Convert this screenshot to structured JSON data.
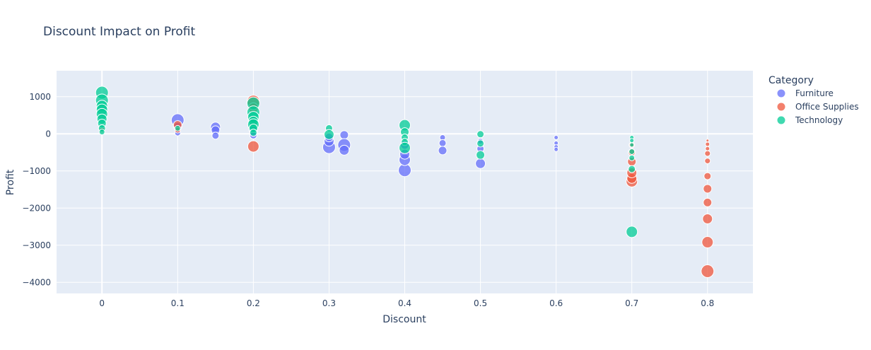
{
  "chart_data": {
    "type": "scatter",
    "title": "Discount Impact on Profit",
    "xlabel": "Discount",
    "ylabel": "Profit",
    "xlim": [
      -0.06,
      0.86
    ],
    "ylim": [
      -4300,
      1700
    ],
    "xticks": [
      0,
      0.1,
      0.2,
      0.3,
      0.4,
      0.5,
      0.6,
      0.7,
      0.8
    ],
    "xtick_labels": [
      "0",
      "0.1",
      "0.2",
      "0.3",
      "0.4",
      "0.5",
      "0.6",
      "0.7",
      "0.8"
    ],
    "yticks": [
      1000,
      0,
      -1000,
      -2000,
      -3000,
      -4000
    ],
    "ytick_labels": [
      "1000",
      "0",
      "−1000",
      "−2000",
      "−3000",
      "−4000"
    ],
    "grid": true,
    "legend_title": "Category",
    "legend_position": "top-right",
    "series": [
      {
        "name": "Furniture",
        "color": "#636efa",
        "points": [
          {
            "x": 0.1,
            "y": 370,
            "s": 9
          },
          {
            "x": 0.1,
            "y": 200,
            "s": 6
          },
          {
            "x": 0.1,
            "y": 20,
            "s": 4
          },
          {
            "x": 0.15,
            "y": 180,
            "s": 7
          },
          {
            "x": 0.15,
            "y": 100,
            "s": 6
          },
          {
            "x": 0.15,
            "y": -50,
            "s": 5
          },
          {
            "x": 0.2,
            "y": 100,
            "s": 6
          },
          {
            "x": 0.2,
            "y": -40,
            "s": 5
          },
          {
            "x": 0.3,
            "y": -360,
            "s": 9
          },
          {
            "x": 0.3,
            "y": -200,
            "s": 7
          },
          {
            "x": 0.3,
            "y": -100,
            "s": 6
          },
          {
            "x": 0.32,
            "y": -30,
            "s": 6
          },
          {
            "x": 0.32,
            "y": -300,
            "s": 9
          },
          {
            "x": 0.32,
            "y": -440,
            "s": 7
          },
          {
            "x": 0.4,
            "y": -980,
            "s": 9
          },
          {
            "x": 0.4,
            "y": -700,
            "s": 8
          },
          {
            "x": 0.4,
            "y": -550,
            "s": 7
          },
          {
            "x": 0.4,
            "y": -300,
            "s": 6
          },
          {
            "x": 0.45,
            "y": -100,
            "s": 4
          },
          {
            "x": 0.45,
            "y": -250,
            "s": 5
          },
          {
            "x": 0.45,
            "y": -450,
            "s": 6
          },
          {
            "x": 0.5,
            "y": -800,
            "s": 7
          },
          {
            "x": 0.5,
            "y": -400,
            "s": 5
          },
          {
            "x": 0.5,
            "y": -200,
            "s": 4
          },
          {
            "x": 0.6,
            "y": -100,
            "s": 3
          },
          {
            "x": 0.6,
            "y": -250,
            "s": 3
          },
          {
            "x": 0.6,
            "y": -350,
            "s": 3
          },
          {
            "x": 0.6,
            "y": -420,
            "s": 3
          }
        ]
      },
      {
        "name": "Office Supplies",
        "color": "#ef553b",
        "points": [
          {
            "x": 0,
            "y": 100,
            "s": 4
          },
          {
            "x": 0.1,
            "y": 240,
            "s": 6
          },
          {
            "x": 0.1,
            "y": 100,
            "s": 4
          },
          {
            "x": 0.2,
            "y": 870,
            "s": 9
          },
          {
            "x": 0.2,
            "y": -340,
            "s": 8
          },
          {
            "x": 0.2,
            "y": 700,
            "s": 7
          },
          {
            "x": 0.2,
            "y": 300,
            "s": 5
          },
          {
            "x": 0.7,
            "y": -1280,
            "s": 8
          },
          {
            "x": 0.7,
            "y": -1200,
            "s": 7
          },
          {
            "x": 0.7,
            "y": -1050,
            "s": 7
          },
          {
            "x": 0.7,
            "y": -750,
            "s": 6
          },
          {
            "x": 0.7,
            "y": -500,
            "s": 5
          },
          {
            "x": 0.7,
            "y": -300,
            "s": 4
          },
          {
            "x": 0.8,
            "y": -3700,
            "s": 9
          },
          {
            "x": 0.8,
            "y": -2920,
            "s": 8
          },
          {
            "x": 0.8,
            "y": -2290,
            "s": 7
          },
          {
            "x": 0.8,
            "y": -1850,
            "s": 6
          },
          {
            "x": 0.8,
            "y": -1480,
            "s": 6
          },
          {
            "x": 0.8,
            "y": -1140,
            "s": 5
          },
          {
            "x": 0.8,
            "y": -730,
            "s": 4
          },
          {
            "x": 0.8,
            "y": -530,
            "s": 4
          },
          {
            "x": 0.8,
            "y": -400,
            "s": 3
          },
          {
            "x": 0.8,
            "y": -280,
            "s": 3
          },
          {
            "x": 0.8,
            "y": -180,
            "s": 2
          }
        ]
      },
      {
        "name": "Technology",
        "color": "#00cc96",
        "points": [
          {
            "x": 0,
            "y": 1110,
            "s": 9
          },
          {
            "x": 0,
            "y": 900,
            "s": 9
          },
          {
            "x": 0,
            "y": 750,
            "s": 8
          },
          {
            "x": 0,
            "y": 650,
            "s": 8
          },
          {
            "x": 0,
            "y": 530,
            "s": 8
          },
          {
            "x": 0,
            "y": 400,
            "s": 7
          },
          {
            "x": 0,
            "y": 280,
            "s": 6
          },
          {
            "x": 0,
            "y": 150,
            "s": 5
          },
          {
            "x": 0,
            "y": 50,
            "s": 4
          },
          {
            "x": 0.1,
            "y": 150,
            "s": 4
          },
          {
            "x": 0.2,
            "y": 820,
            "s": 9
          },
          {
            "x": 0.2,
            "y": 580,
            "s": 9
          },
          {
            "x": 0.2,
            "y": 450,
            "s": 8
          },
          {
            "x": 0.2,
            "y": 340,
            "s": 7
          },
          {
            "x": 0.2,
            "y": 250,
            "s": 8
          },
          {
            "x": 0.2,
            "y": 150,
            "s": 6
          },
          {
            "x": 0.2,
            "y": 30,
            "s": 5
          },
          {
            "x": 0.3,
            "y": 150,
            "s": 5
          },
          {
            "x": 0.3,
            "y": -20,
            "s": 7
          },
          {
            "x": 0.4,
            "y": 230,
            "s": 8
          },
          {
            "x": 0.4,
            "y": 50,
            "s": 6
          },
          {
            "x": 0.4,
            "y": -100,
            "s": 5
          },
          {
            "x": 0.4,
            "y": -220,
            "s": 5
          },
          {
            "x": 0.4,
            "y": -380,
            "s": 8
          },
          {
            "x": 0.5,
            "y": -10,
            "s": 5
          },
          {
            "x": 0.5,
            "y": -260,
            "s": 5
          },
          {
            "x": 0.5,
            "y": -570,
            "s": 6
          },
          {
            "x": 0.7,
            "y": -100,
            "s": 3
          },
          {
            "x": 0.7,
            "y": -180,
            "s": 3
          },
          {
            "x": 0.7,
            "y": -300,
            "s": 3
          },
          {
            "x": 0.7,
            "y": -480,
            "s": 4
          },
          {
            "x": 0.7,
            "y": -650,
            "s": 4
          },
          {
            "x": 0.7,
            "y": -950,
            "s": 5
          },
          {
            "x": 0.7,
            "y": -2640,
            "s": 8
          }
        ]
      }
    ]
  }
}
